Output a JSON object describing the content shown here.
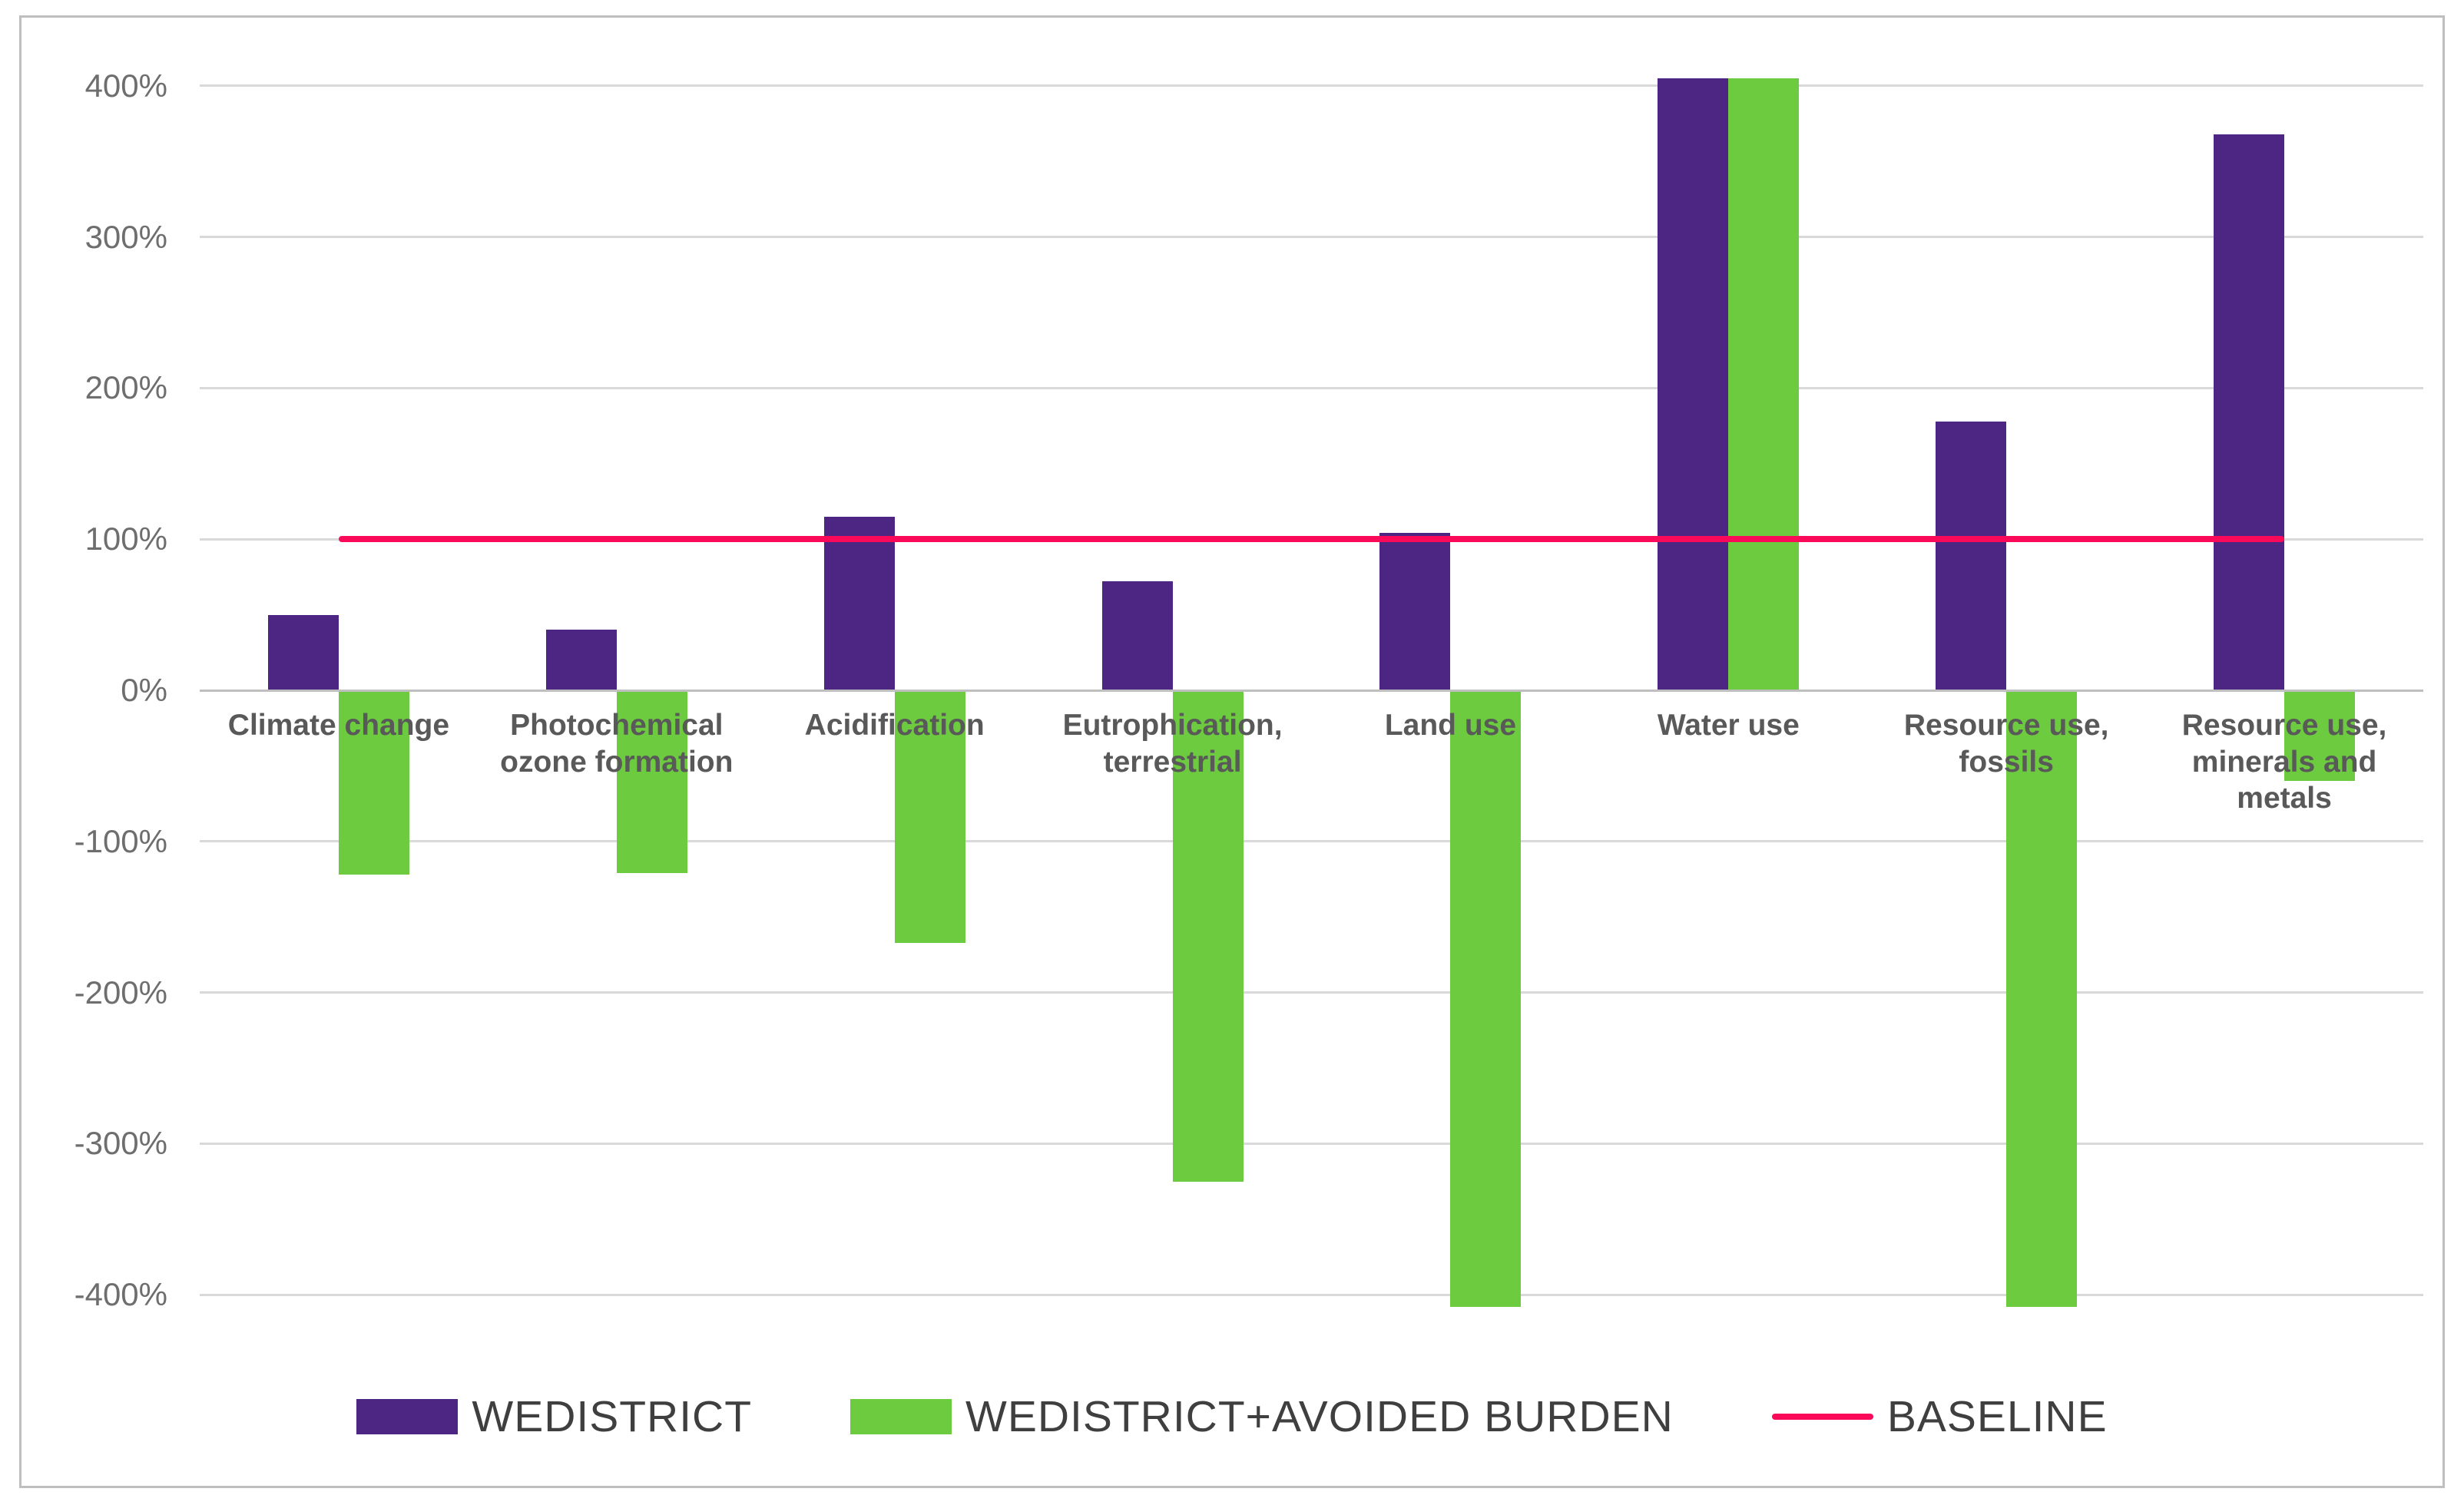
{
  "chart_data": {
    "type": "bar",
    "title": "",
    "xlabel": "",
    "ylabel": "",
    "categories": [
      "Climate change",
      "Photochemical\nozone formation",
      "Acidification",
      "Eutrophication,\nterrestrial",
      "Land use",
      "Water use",
      "Resource use,\nfossils",
      "Resource use,\nminerals and\nmetals"
    ],
    "series": [
      {
        "name": "WEDISTRICT",
        "color": "#4d2683",
        "values": [
          50,
          40,
          115,
          72,
          104,
          400,
          178,
          368
        ],
        "clipped": [
          false,
          false,
          false,
          false,
          false,
          true,
          false,
          false
        ]
      },
      {
        "name": "WEDISTRICT+AVOIDED BURDEN",
        "color": "#6ccb3e",
        "values": [
          -122,
          -121,
          -167,
          -325,
          -400,
          400,
          -400,
          -60
        ],
        "clipped": [
          false,
          false,
          false,
          false,
          true,
          true,
          true,
          false
        ]
      }
    ],
    "baseline": {
      "name": "BASELINE",
      "value": 100,
      "color": "#fb0a5a"
    },
    "ylim": [
      -408,
      405
    ],
    "yticks": [
      400,
      300,
      200,
      100,
      0,
      -100,
      -200,
      -300,
      -400
    ],
    "ytick_labels": [
      "400%",
      "300%",
      "200%",
      "100%",
      "0%",
      "-100%",
      "-200%",
      "-300%",
      "-400%"
    ],
    "grid": true,
    "legend_position": "bottom",
    "values_unit": "percent of baseline",
    "values_note": "bars marked clipped extend beyond the plotted axis range (over 400% or under -400%)"
  },
  "colors": {
    "gridline": "#d9d9d9",
    "zero_axis": "#bfbfbf",
    "figure_border": "#bfbfbf",
    "tick_text": "#6e6e6e",
    "category_text": "#595959",
    "legend_text": "#3f3f3f"
  }
}
